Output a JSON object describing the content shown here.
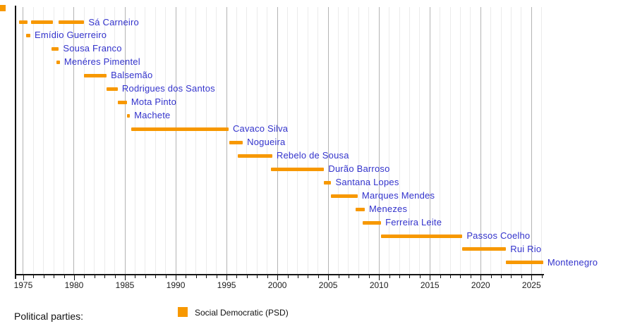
{
  "chart_data": {
    "type": "bar",
    "subtype": "timeline-gantt",
    "title": "",
    "xlabel": "",
    "ylabel": "",
    "grid": "yearly vertical gridlines, darker every 5 years",
    "x_axis": {
      "min": 1974.24,
      "max": 2026.16,
      "major_ticks": [
        1975,
        1980,
        1985,
        1990,
        1995,
        2000,
        2005,
        2010,
        2015,
        2020,
        2025
      ],
      "minor_tick_step": 1
    },
    "series": [
      {
        "name": "Social Democratic (PSD)",
        "color": "#F79800"
      }
    ],
    "rows": [
      {
        "name": "Sá Carneiro",
        "party": "Social Democratic (PSD)",
        "segments": [
          [
            1974.6,
            1975.4
          ],
          [
            1975.8,
            1977.9
          ],
          [
            1978.5,
            1981.0
          ]
        ]
      },
      {
        "name": "Emídio Guerreiro",
        "party": "Social Democratic (PSD)",
        "segments": [
          [
            1975.3,
            1975.7
          ]
        ]
      },
      {
        "name": "Sousa Franco",
        "party": "Social Democratic (PSD)",
        "segments": [
          [
            1977.8,
            1978.5
          ]
        ]
      },
      {
        "name": "Menéres Pimentel",
        "party": "Social Democratic (PSD)",
        "segments": [
          [
            1978.3,
            1978.6
          ]
        ]
      },
      {
        "name": "Balsemão",
        "party": "Social Democratic (PSD)",
        "segments": [
          [
            1981.0,
            1983.2
          ]
        ]
      },
      {
        "name": "Rodrigues dos Santos",
        "party": "Social Democratic (PSD)",
        "segments": [
          [
            1983.2,
            1984.3
          ]
        ]
      },
      {
        "name": "Mota Pinto",
        "party": "Social Democratic (PSD)",
        "segments": [
          [
            1984.3,
            1985.2
          ]
        ]
      },
      {
        "name": "Machete",
        "party": "Social Democratic (PSD)",
        "segments": [
          [
            1985.2,
            1985.5
          ]
        ]
      },
      {
        "name": "Cavaco Silva",
        "party": "Social Democratic (PSD)",
        "segments": [
          [
            1985.6,
            1995.2
          ]
        ]
      },
      {
        "name": "Nogueira",
        "party": "Social Democratic (PSD)",
        "segments": [
          [
            1995.3,
            1996.6
          ]
        ]
      },
      {
        "name": "Rebelo de Sousa",
        "party": "Social Democratic (PSD)",
        "segments": [
          [
            1996.1,
            1999.5
          ]
        ]
      },
      {
        "name": "Durão Barroso",
        "party": "Social Democratic (PSD)",
        "segments": [
          [
            1999.4,
            2004.6
          ]
        ]
      },
      {
        "name": "Santana Lopes",
        "party": "Social Democratic (PSD)",
        "segments": [
          [
            2004.6,
            2005.3
          ]
        ]
      },
      {
        "name": "Marques Mendes",
        "party": "Social Democratic (PSD)",
        "segments": [
          [
            2005.3,
            2007.9
          ]
        ]
      },
      {
        "name": "Menezes",
        "party": "Social Democratic (PSD)",
        "segments": [
          [
            2007.7,
            2008.6
          ]
        ]
      },
      {
        "name": "Ferreira Leite",
        "party": "Social Democratic (PSD)",
        "segments": [
          [
            2008.4,
            2010.2
          ]
        ]
      },
      {
        "name": "Passos Coelho",
        "party": "Social Democratic (PSD)",
        "segments": [
          [
            2010.2,
            2018.2
          ]
        ]
      },
      {
        "name": "Rui Rio",
        "party": "Social Democratic (PSD)",
        "segments": [
          [
            2018.2,
            2022.5
          ]
        ]
      },
      {
        "name": "Montenegro",
        "party": "Social Democratic (PSD)",
        "segments": [
          [
            2022.5,
            2026.15
          ]
        ]
      }
    ],
    "legend": {
      "position": "bottom",
      "title": "Political parties:",
      "entries": [
        {
          "label": "Social Democratic (PSD)",
          "color": "#F79800"
        }
      ]
    },
    "colors": {
      "bar": "#F79800",
      "leader_label": "#3333CC",
      "axis": "#141414",
      "gridline_minor": "#ebebeb",
      "gridline_major": "#b4b4b4",
      "tick_label": "#1c1c1c"
    }
  }
}
